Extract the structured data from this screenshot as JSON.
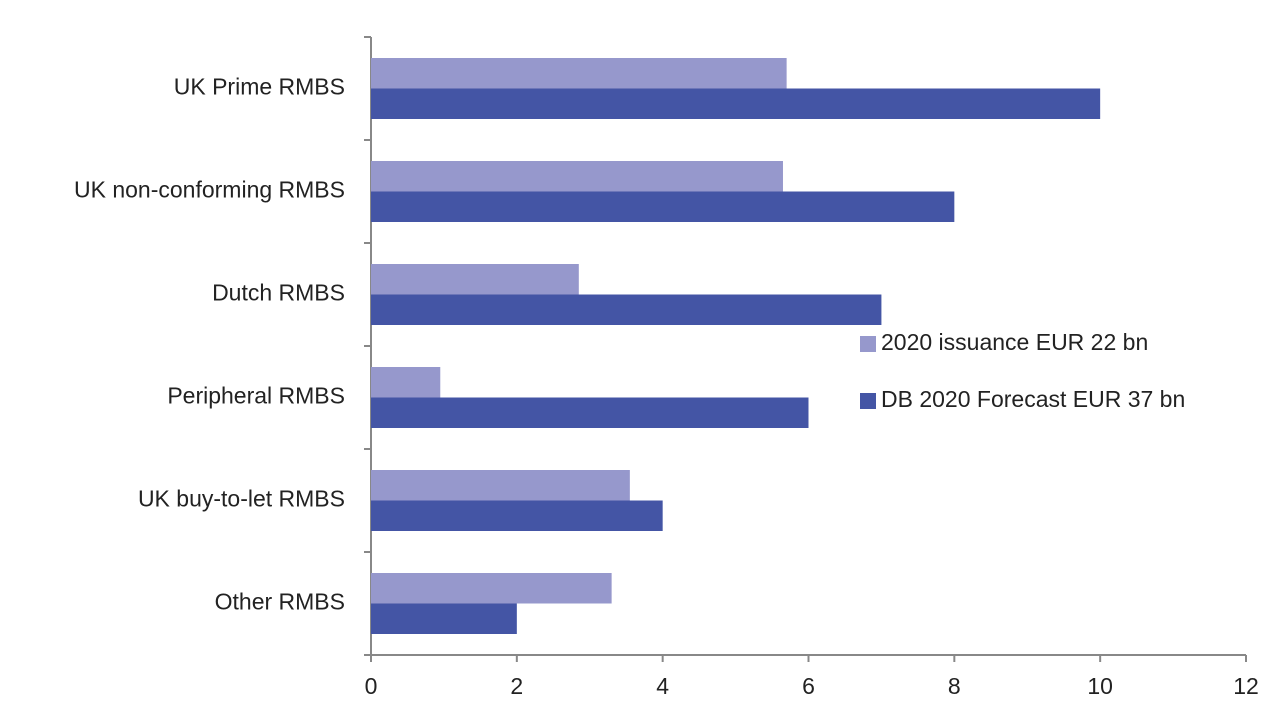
{
  "chart_data": {
    "type": "hbar",
    "categories": [
      "UK Prime RMBS",
      "UK non-conforming RMBS",
      "Dutch RMBS",
      "Peripheral RMBS",
      "UK buy-to-let RMBS",
      "Other RMBS"
    ],
    "series": [
      {
        "name": "2020  issuance EUR 22 bn",
        "color": "#9698cc",
        "values": [
          5.7,
          5.65,
          2.85,
          0.95,
          3.55,
          3.3
        ]
      },
      {
        "name": "DB 2020 Forecast EUR 37 bn",
        "color": "#4455a5",
        "values": [
          10,
          8,
          7,
          6,
          4,
          2
        ]
      }
    ],
    "xlim": [
      0,
      12
    ],
    "xticks": [
      0,
      2,
      4,
      6,
      8,
      10,
      12
    ],
    "grid": false,
    "legend": "right"
  }
}
